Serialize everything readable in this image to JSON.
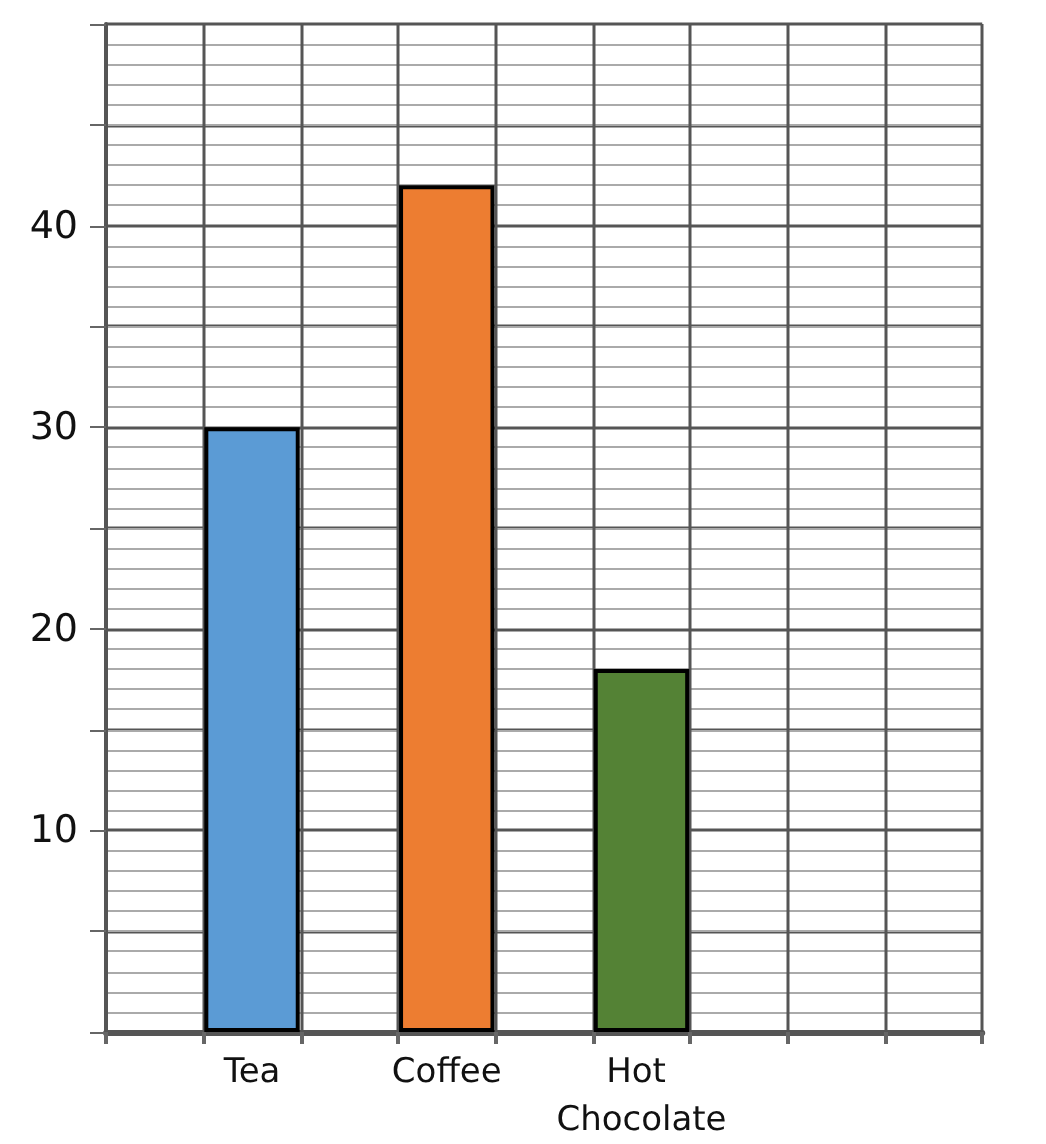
{
  "chart_data": {
    "type": "bar",
    "categories": [
      null,
      "Tea",
      null,
      "Coffee",
      null,
      "Hot Chocolate",
      null,
      null,
      null
    ],
    "values": [
      null,
      30,
      null,
      42,
      null,
      18,
      null,
      null,
      null
    ],
    "colors": [
      null,
      "#5b9bd5",
      null,
      "#ed7d31",
      null,
      "#548235",
      null,
      null,
      null
    ],
    "ylim": [
      0,
      50
    ],
    "yticks": [
      {
        "value": 0,
        "label": null
      },
      {
        "value": 5,
        "label": null
      },
      10,
      {
        "value": 15,
        "label": null
      },
      20,
      {
        "value": 25,
        "label": null
      },
      30,
      {
        "value": 35,
        "label": null
      },
      40,
      {
        "value": 45,
        "label": null
      },
      {
        "value": 50,
        "label": null
      }
    ],
    "grid": true
  }
}
